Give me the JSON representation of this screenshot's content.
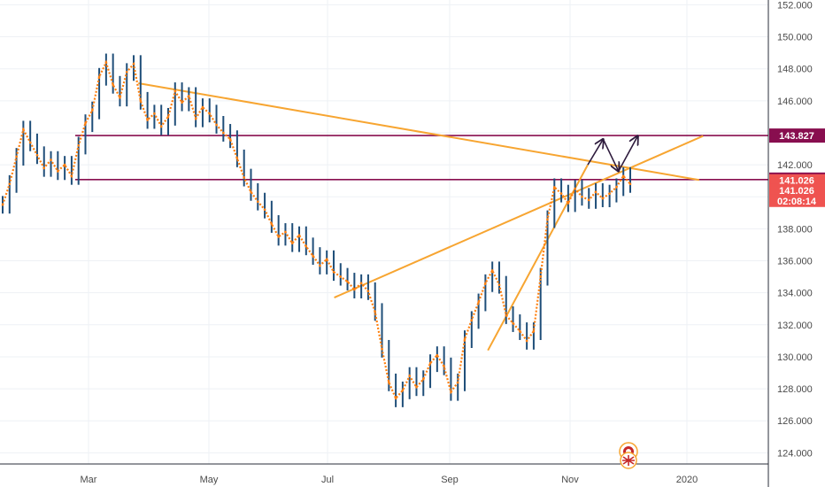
{
  "chart_data": {
    "type": "line",
    "title": "",
    "xlabel": "",
    "ylabel": "",
    "x_ticks": [
      "Mar",
      "May",
      "Jul",
      "Sep",
      "Nov",
      "2020"
    ],
    "y_ticks": [
      "124.000",
      "126.000",
      "128.000",
      "130.000",
      "132.000",
      "134.000",
      "136.000",
      "138.000",
      "140.000",
      "142.000",
      "144.000",
      "146.000",
      "148.000",
      "150.000",
      "152.000"
    ],
    "ylim": [
      123.3,
      152.3
    ],
    "grid": true,
    "series": [
      {
        "values": [
          139.5,
          140.8,
          142.5,
          144.2,
          143.4,
          142.6,
          141.8,
          142.3,
          141.6,
          142.0,
          141.3,
          143.2,
          144.6,
          145.4,
          147.5,
          148.4,
          147.0,
          146.2,
          147.8,
          148.3,
          146.0,
          144.8,
          145.2,
          144.4,
          145.0,
          146.6,
          145.9,
          146.3,
          144.9,
          145.6,
          145.2,
          144.5,
          144.0,
          143.6,
          142.4,
          141.2,
          140.3,
          139.7,
          139.2,
          138.3,
          137.5,
          137.8,
          137.1,
          137.6,
          136.9,
          136.3,
          135.7,
          136.1,
          135.3,
          135.0,
          134.7,
          134.2,
          134.6,
          134.1,
          132.8,
          130.5,
          128.4,
          127.4,
          127.9,
          128.8,
          128.1,
          128.6,
          129.6,
          130.1,
          129.4,
          127.8,
          128.4,
          131.1,
          132.3,
          133.4,
          134.6,
          135.4,
          134.5,
          132.6,
          132.1,
          131.6,
          131.0,
          131.6,
          135.0,
          138.6,
          140.6,
          140.2,
          139.6,
          140.5,
          140.0,
          139.8,
          140.3,
          139.9,
          140.2,
          140.6,
          141.3,
          140.8
        ]
      }
    ],
    "annotations": {
      "levels": [
        {
          "label": "143.827",
          "value": 143.827,
          "color": "#880e4f"
        },
        {
          "label": "141.075",
          "value": 141.075,
          "color": "#880e4f"
        }
      ],
      "price_tags": [
        {
          "label": "141.026",
          "value": 141.026,
          "color": "#ef5350"
        },
        {
          "label": "141.026",
          "value": 140.41,
          "color": "#ef5350"
        },
        {
          "label": "02:08:14",
          "value": 139.75,
          "color": "#ef5350"
        }
      ],
      "trendlines": [
        {
          "name": "descending-resistance",
          "from": [
            0.18,
            147.1
          ],
          "to": [
            0.91,
            141.05
          ]
        },
        {
          "name": "rising-support-shallow",
          "from": [
            0.435,
            133.7
          ],
          "to": [
            0.915,
            143.8
          ]
        },
        {
          "name": "rising-support-steep",
          "from": [
            0.635,
            130.4
          ],
          "to": [
            0.765,
            142.0
          ]
        }
      ],
      "arrows": [
        {
          "from": [
            0.765,
            142.0
          ],
          "to": [
            0.785,
            143.6
          ]
        },
        {
          "from": [
            0.785,
            143.6
          ],
          "to": [
            0.805,
            141.6
          ]
        },
        {
          "from": [
            0.805,
            141.6
          ],
          "to": [
            0.83,
            143.8
          ]
        }
      ]
    },
    "colors": {
      "series": "#ff7f0e",
      "bars": "#1f4e79",
      "trendline": "#f7a531",
      "level": "#880e4f",
      "price_tag": "#ef5350",
      "arrow": "#2e1b3d",
      "grid": "#eef1f5",
      "axis_text": "#4a4a4a"
    }
  }
}
